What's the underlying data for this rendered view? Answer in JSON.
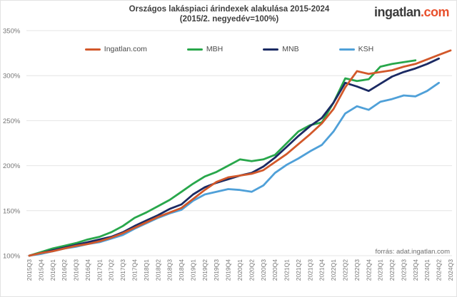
{
  "logo": {
    "name_part": "ingatlan",
    "tld_part": ".com"
  },
  "source_note": "forrás: adat.ingatlan.com",
  "chart_data": {
    "type": "line",
    "title": "Országos lakáspiaci árindexek alakulása 2015-2024",
    "subtitle": "(2015/2. negyedév=100%)",
    "legend_position": "top",
    "grid": "horizontal",
    "ylim": [
      100,
      350
    ],
    "y_tick_labels": [
      "100%",
      "150%",
      "200%",
      "250%",
      "300%",
      "350%"
    ],
    "x_categories": [
      "2015Q3",
      "2015Q4",
      "2016Q1",
      "2016Q2",
      "2016Q3",
      "2016Q4",
      "2017Q1",
      "2017Q2",
      "2017Q3",
      "2017Q4",
      "2018Q1",
      "2018Q2",
      "2018Q3",
      "2018Q4",
      "2019Q1",
      "2019Q2",
      "2019Q3",
      "2019Q4",
      "2020Q1",
      "2020Q2",
      "2020Q3",
      "2020Q4",
      "2021Q1",
      "2021Q2",
      "2021Q3",
      "2021Q4",
      "2022Q1",
      "2022Q2",
      "2022Q3",
      "2022Q4",
      "2023Q1",
      "2023Q2",
      "2023Q3",
      "2023Q4",
      "2024Q1",
      "2024Q2",
      "2024Q3"
    ],
    "series": [
      {
        "name": "Ingatlan.com",
        "color": "#d2582a",
        "values": [
          100,
          103,
          105,
          108,
          111,
          113,
          116,
          120,
          125,
          131,
          137,
          143,
          148,
          153,
          163,
          173,
          182,
          187,
          189,
          191,
          195,
          204,
          213,
          224,
          235,
          247,
          263,
          287,
          305,
          302,
          304,
          306,
          310,
          313,
          318,
          323,
          328
        ]
      },
      {
        "name": "MBH",
        "color": "#28a74b",
        "values": [
          100,
          104,
          108,
          111,
          114,
          118,
          121,
          126,
          133,
          142,
          148,
          155,
          162,
          171,
          180,
          188,
          193,
          200,
          207,
          205,
          207,
          212,
          225,
          238,
          245,
          248,
          270,
          297,
          294,
          296,
          310,
          313,
          315,
          317,
          null,
          null,
          null
        ]
      },
      {
        "name": "MNB",
        "color": "#1b2a63",
        "values": [
          100,
          103,
          106,
          109,
          112,
          115,
          118,
          121,
          126,
          133,
          139,
          145,
          152,
          157,
          168,
          176,
          181,
          185,
          189,
          192,
          199,
          209,
          221,
          233,
          244,
          253,
          270,
          292,
          288,
          283,
          291,
          299,
          304,
          308,
          313,
          319,
          null
        ]
      },
      {
        "name": "KSH",
        "color": "#4fa0d8",
        "values": [
          100,
          102,
          105,
          108,
          110,
          113,
          115,
          119,
          123,
          130,
          136,
          142,
          147,
          151,
          161,
          168,
          171,
          174,
          173,
          171,
          178,
          192,
          201,
          208,
          216,
          223,
          238,
          258,
          266,
          262,
          271,
          274,
          278,
          277,
          283,
          292,
          null
        ]
      }
    ]
  }
}
